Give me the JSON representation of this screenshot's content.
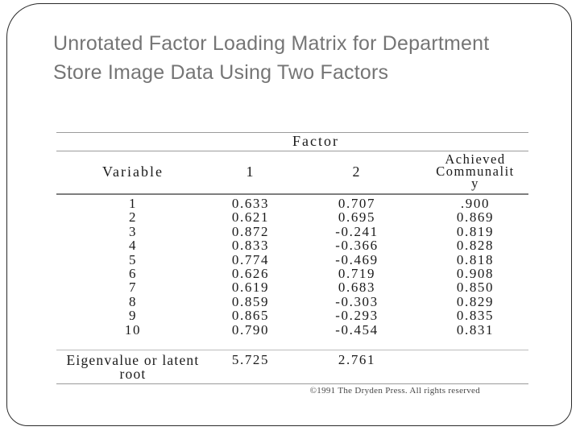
{
  "slide": {
    "title": "Unrotated Factor Loading Matrix for Department Store Image Data Using Two Factors",
    "copyright": "©1991 The Dryden Press.  All rights reserved"
  },
  "table": {
    "factor_header": "Factor",
    "columns": {
      "variable": "Variable",
      "factor1": "1",
      "factor2": "2"
    },
    "achieved_lines": [
      "Achieved",
      "Communalit",
      "y"
    ],
    "rows": [
      {
        "variable": "1",
        "f1": "0.633",
        "f2": "0.707",
        "comm": ".900"
      },
      {
        "variable": "2",
        "f1": "0.621",
        "f2": "0.695",
        "comm": "0.869"
      },
      {
        "variable": "3",
        "f1": "0.872",
        "f2": "-0.241",
        "comm": "0.819"
      },
      {
        "variable": "4",
        "f1": "0.833",
        "f2": "-0.366",
        "comm": "0.828"
      },
      {
        "variable": "5",
        "f1": "0.774",
        "f2": "-0.469",
        "comm": "0.818"
      },
      {
        "variable": "6",
        "f1": "0.626",
        "f2": "0.719",
        "comm": "0.908"
      },
      {
        "variable": "7",
        "f1": "0.619",
        "f2": "0.683",
        "comm": "0.850"
      },
      {
        "variable": "8",
        "f1": "0.859",
        "f2": "-0.303",
        "comm": "0.829"
      },
      {
        "variable": "9",
        "f1": "0.865",
        "f2": "-0.293",
        "comm": "0.835"
      },
      {
        "variable": "10",
        "f1": "0.790",
        "f2": "-0.454",
        "comm": "0.831"
      }
    ],
    "footer": {
      "label_line1": "Eigenvalue or latent",
      "label_line2": "root",
      "f1": "5.725",
      "f2": "2.761"
    }
  }
}
